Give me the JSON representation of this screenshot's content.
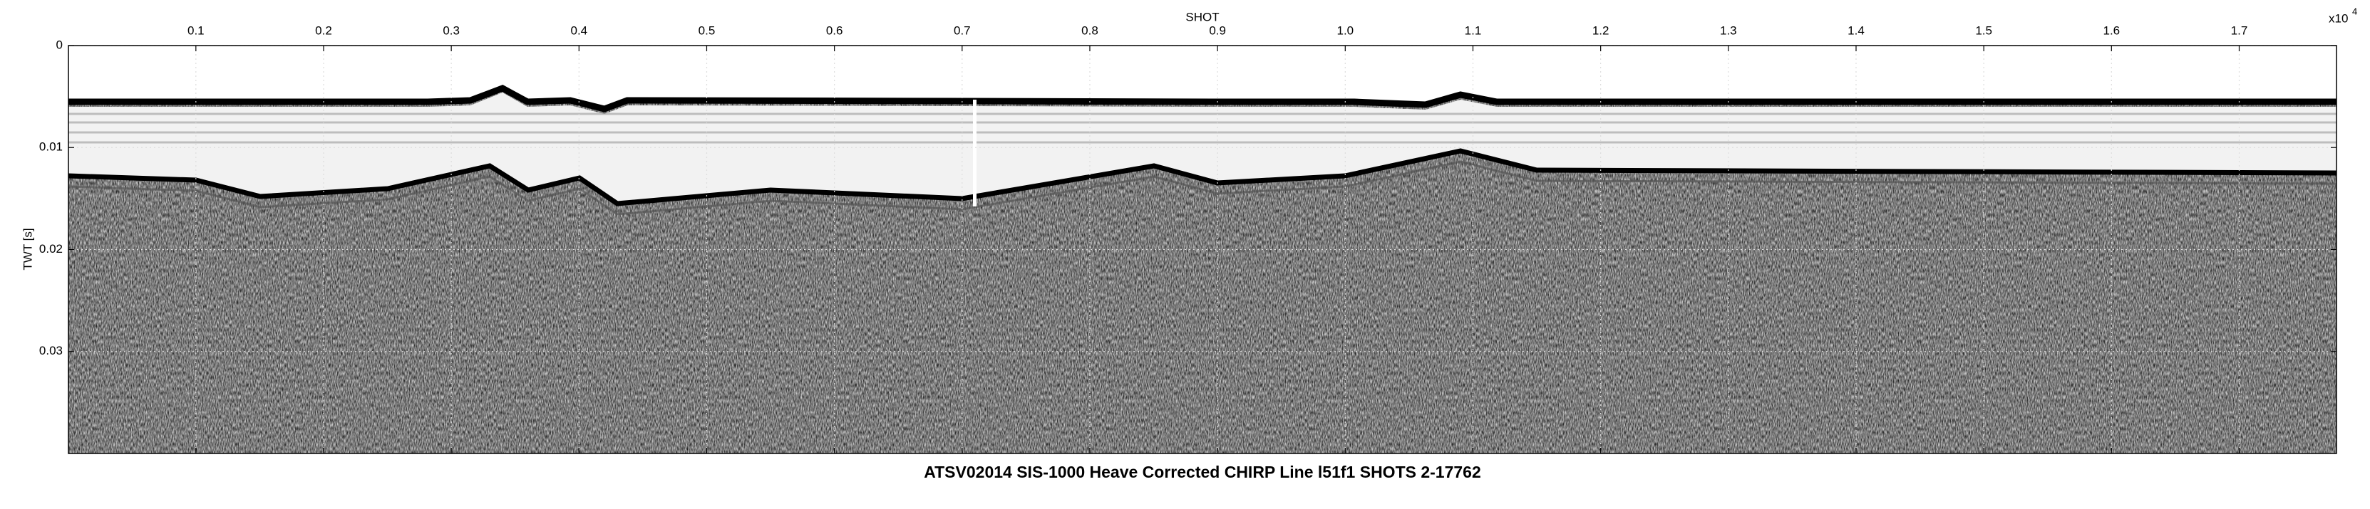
{
  "chart_data": {
    "type": "seismic",
    "title": "ATSV02014 SIS-1000 Heave Corrected CHIRP Line l51f1 SHOTS 2-17762",
    "x_label": "SHOT",
    "x_multiplier": {
      "base": "x10",
      "exponent": "4"
    },
    "y_label": "TWT [s]",
    "xlim": [
      0.0002,
      1.7762
    ],
    "xticks": [
      0.1,
      0.2,
      0.3,
      0.4,
      0.5,
      0.6,
      0.7,
      0.8,
      0.9,
      {
        "value": 1,
        "label": "1.0"
      },
      1.1,
      1.2,
      1.3,
      1.4,
      1.5,
      1.6,
      1.7
    ],
    "ylim": [
      0,
      0.04
    ],
    "yticks": [
      0,
      0.01,
      0.02,
      0.03
    ],
    "y_inverted": true,
    "grid": true
  }
}
